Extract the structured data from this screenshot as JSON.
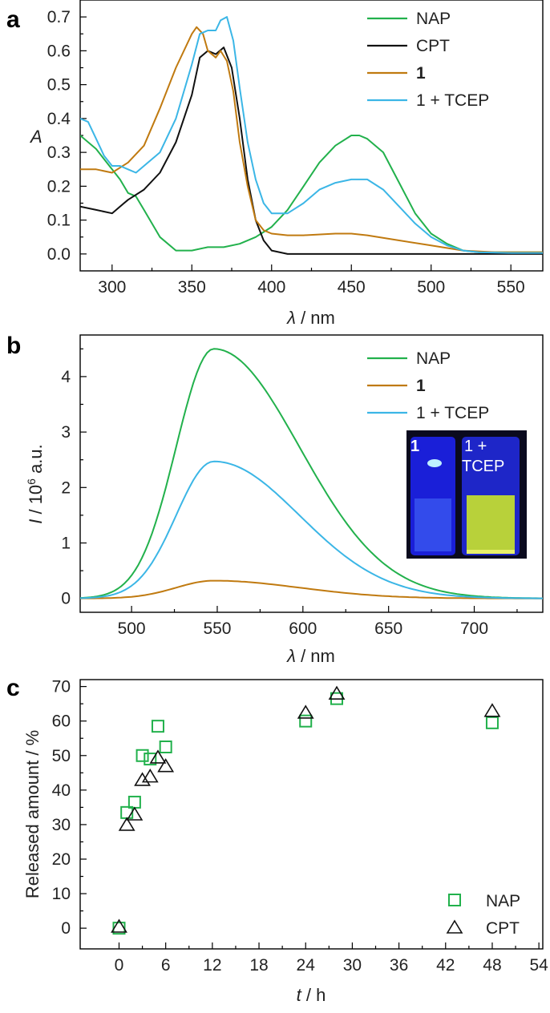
{
  "chart_data": [
    {
      "panel": "a",
      "type": "line",
      "xlabel_symbol": "λ",
      "xlabel_unit": " / nm",
      "ylabel": "A",
      "xlim": [
        280,
        570
      ],
      "ylim": [
        -0.05,
        0.75
      ],
      "x_ticks": [
        300,
        350,
        400,
        450,
        500,
        550
      ],
      "y_ticks": [
        0.0,
        0.1,
        0.2,
        0.3,
        0.4,
        0.5,
        0.6,
        0.7
      ],
      "legend": [
        "NAP",
        "CPT",
        "1",
        "1 + TCEP"
      ],
      "series": [
        {
          "name": "NAP",
          "color": "#22b14c",
          "x": [
            280,
            290,
            300,
            305,
            310,
            315,
            320,
            330,
            340,
            350,
            360,
            370,
            380,
            390,
            400,
            410,
            420,
            430,
            440,
            450,
            455,
            460,
            470,
            480,
            490,
            500,
            510,
            520,
            530,
            550,
            570
          ],
          "y": [
            0.35,
            0.31,
            0.25,
            0.22,
            0.18,
            0.17,
            0.13,
            0.05,
            0.01,
            0.01,
            0.02,
            0.02,
            0.03,
            0.05,
            0.08,
            0.13,
            0.2,
            0.27,
            0.32,
            0.35,
            0.35,
            0.34,
            0.3,
            0.21,
            0.12,
            0.06,
            0.03,
            0.01,
            0.005,
            0.005,
            0.005
          ]
        },
        {
          "name": "CPT",
          "color": "#111111",
          "x": [
            280,
            290,
            300,
            305,
            310,
            320,
            330,
            340,
            350,
            355,
            360,
            365,
            370,
            375,
            380,
            385,
            390,
            395,
            400,
            410,
            420,
            450,
            500,
            570
          ],
          "y": [
            0.14,
            0.13,
            0.12,
            0.14,
            0.16,
            0.19,
            0.24,
            0.33,
            0.47,
            0.58,
            0.6,
            0.59,
            0.61,
            0.55,
            0.4,
            0.22,
            0.1,
            0.04,
            0.01,
            0.0,
            0.0,
            0.0,
            0.0,
            0.0
          ]
        },
        {
          "name": "1",
          "color": "#c07a10",
          "x": [
            280,
            290,
            300,
            310,
            320,
            330,
            340,
            350,
            353,
            357,
            360,
            365,
            368,
            372,
            376,
            380,
            385,
            390,
            395,
            400,
            410,
            420,
            440,
            450,
            460,
            480,
            500,
            520,
            540,
            570
          ],
          "y": [
            0.25,
            0.25,
            0.24,
            0.27,
            0.32,
            0.43,
            0.55,
            0.65,
            0.67,
            0.65,
            0.6,
            0.58,
            0.6,
            0.57,
            0.48,
            0.33,
            0.2,
            0.1,
            0.07,
            0.06,
            0.055,
            0.055,
            0.06,
            0.06,
            0.055,
            0.04,
            0.025,
            0.01,
            0.005,
            0.005
          ]
        },
        {
          "name": "1 + TCEP",
          "color": "#3bb6e6",
          "x": [
            280,
            285,
            290,
            295,
            300,
            305,
            310,
            315,
            320,
            330,
            340,
            350,
            355,
            360,
            365,
            368,
            372,
            376,
            380,
            385,
            390,
            395,
            400,
            410,
            420,
            430,
            440,
            450,
            455,
            460,
            470,
            480,
            490,
            500,
            510,
            520,
            530,
            550,
            570
          ],
          "y": [
            0.4,
            0.39,
            0.34,
            0.29,
            0.26,
            0.26,
            0.25,
            0.24,
            0.26,
            0.3,
            0.4,
            0.56,
            0.65,
            0.66,
            0.66,
            0.69,
            0.7,
            0.63,
            0.49,
            0.33,
            0.22,
            0.15,
            0.12,
            0.12,
            0.15,
            0.19,
            0.21,
            0.22,
            0.22,
            0.22,
            0.19,
            0.14,
            0.09,
            0.05,
            0.025,
            0.01,
            0.005,
            0.003,
            0.003
          ]
        }
      ]
    },
    {
      "panel": "b",
      "type": "line",
      "xlabel_symbol": "λ",
      "xlabel_unit": " / nm",
      "ylabel_symbol": "I",
      "ylabel_unit": " / 10",
      "ylabel_exp": "6",
      "ylabel_tail": " a.u.",
      "xlim": [
        470,
        740
      ],
      "ylim": [
        -0.25,
        4.75
      ],
      "x_ticks": [
        500,
        550,
        600,
        650,
        700
      ],
      "y_ticks": [
        0,
        1,
        2,
        3,
        4
      ],
      "legend": [
        "NAP",
        "1",
        "1 + TCEP"
      ],
      "inset_labels": [
        "1",
        "1 +",
        "TCEP"
      ],
      "series": [
        {
          "name": "NAP",
          "color": "#22b14c",
          "peak": 4.5,
          "peak_x": 548
        },
        {
          "name": "1",
          "color": "#c07a10",
          "peak": 0.32,
          "peak_x": 548
        },
        {
          "name": "1 + TCEP",
          "color": "#3bb6e6",
          "peak": 2.47,
          "peak_x": 548
        }
      ]
    },
    {
      "panel": "c",
      "type": "scatter",
      "xlabel_symbol": "t",
      "xlabel_unit": " / h",
      "ylabel": "Released amount / %",
      "xlim": [
        -5,
        54.5
      ],
      "ylim": [
        -6,
        72
      ],
      "x_ticks": [
        0,
        6,
        12,
        18,
        24,
        30,
        36,
        42,
        48,
        54
      ],
      "y_ticks": [
        0,
        10,
        20,
        30,
        40,
        50,
        60,
        70
      ],
      "legend": [
        "NAP",
        "CPT"
      ],
      "series": [
        {
          "name": "NAP",
          "marker": "square",
          "color": "#22b14c",
          "x": [
            0,
            1,
            2,
            3,
            4,
            5,
            6,
            24,
            28,
            48
          ],
          "y": [
            0,
            33.5,
            36.5,
            50,
            49,
            58.5,
            52.5,
            60,
            66.5,
            59.5
          ]
        },
        {
          "name": "CPT",
          "marker": "triangle",
          "color": "#111111",
          "x": [
            0,
            1,
            2,
            3,
            4,
            5,
            6,
            24,
            28,
            48
          ],
          "y": [
            0.5,
            30,
            33,
            43,
            44,
            49.5,
            47,
            62.5,
            68,
            63
          ]
        }
      ]
    }
  ]
}
